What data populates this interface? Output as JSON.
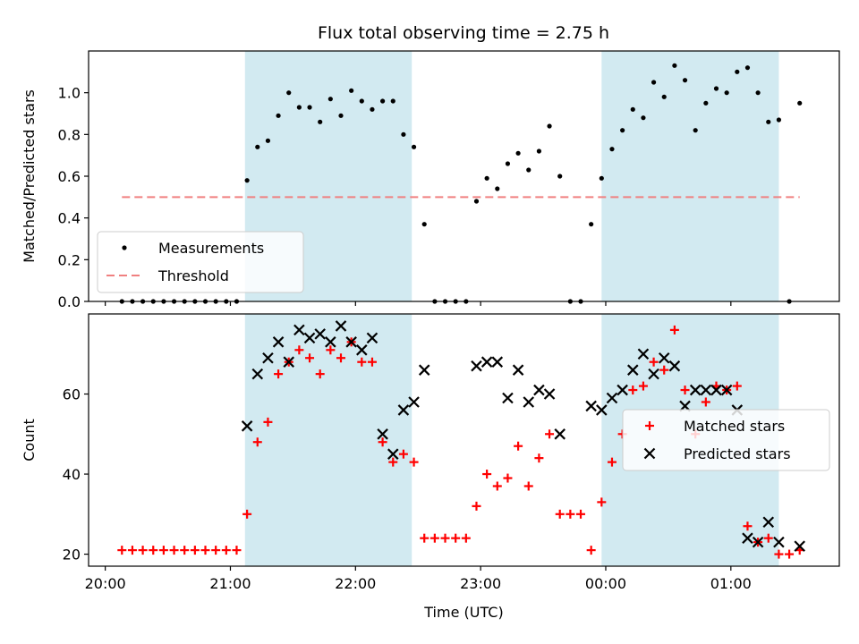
{
  "title": "Flux total observing time = 2.75 h",
  "colors": {
    "shade": "#add8e6",
    "threshold": "#f08080",
    "matched": "#ff0000",
    "predicted": "#000000",
    "measure": "#000000"
  },
  "shaded_intervals": [
    [
      "21:07",
      "22:27"
    ],
    [
      "23:58",
      "01:23"
    ]
  ],
  "chart_data": [
    {
      "type": "scatter",
      "ylabel": "Matched/Predicted stars",
      "xlabel": "",
      "ylim": [
        0,
        1.2
      ],
      "yticks": [
        0.0,
        0.2,
        0.4,
        0.6,
        0.8,
        1.0
      ],
      "yticklabels": [
        "0.0",
        "0.2",
        "0.4",
        "0.6",
        "0.8",
        "1.0"
      ],
      "xlim": [
        "19:52",
        "01:52"
      ],
      "legend_loc": "lower left",
      "series": [
        {
          "name": "Measurements",
          "marker": "dot",
          "points": [
            [
              "20:08",
              0.0
            ],
            [
              "20:13",
              0.0
            ],
            [
              "20:18",
              0.0
            ],
            [
              "20:23",
              0.0
            ],
            [
              "20:28",
              0.0
            ],
            [
              "20:33",
              0.0
            ],
            [
              "20:38",
              0.0
            ],
            [
              "20:43",
              0.0
            ],
            [
              "20:48",
              0.0
            ],
            [
              "20:53",
              0.0
            ],
            [
              "20:58",
              0.0
            ],
            [
              "21:03",
              0.0
            ],
            [
              "21:08",
              0.58
            ],
            [
              "21:13",
              0.74
            ],
            [
              "21:18",
              0.77
            ],
            [
              "21:23",
              0.89
            ],
            [
              "21:28",
              1.0
            ],
            [
              "21:33",
              0.93
            ],
            [
              "21:38",
              0.93
            ],
            [
              "21:43",
              0.86
            ],
            [
              "21:48",
              0.97
            ],
            [
              "21:53",
              0.89
            ],
            [
              "21:58",
              1.01
            ],
            [
              "22:03",
              0.96
            ],
            [
              "22:08",
              0.92
            ],
            [
              "22:13",
              0.96
            ],
            [
              "22:18",
              0.96
            ],
            [
              "22:23",
              0.8
            ],
            [
              "22:28",
              0.74
            ],
            [
              "22:33",
              0.37
            ],
            [
              "22:38",
              0.0
            ],
            [
              "22:43",
              0.0
            ],
            [
              "22:48",
              0.0
            ],
            [
              "22:53",
              0.0
            ],
            [
              "22:58",
              0.48
            ],
            [
              "23:03",
              0.59
            ],
            [
              "23:08",
              0.54
            ],
            [
              "23:13",
              0.66
            ],
            [
              "23:18",
              0.71
            ],
            [
              "23:23",
              0.63
            ],
            [
              "23:28",
              0.72
            ],
            [
              "23:33",
              0.84
            ],
            [
              "23:38",
              0.6
            ],
            [
              "23:43",
              0.0
            ],
            [
              "23:48",
              0.0
            ],
            [
              "23:53",
              0.37
            ],
            [
              "23:58",
              0.59
            ],
            [
              "00:03",
              0.73
            ],
            [
              "00:08",
              0.82
            ],
            [
              "00:13",
              0.92
            ],
            [
              "00:18",
              0.88
            ],
            [
              "00:23",
              1.05
            ],
            [
              "00:28",
              0.98
            ],
            [
              "00:33",
              1.13
            ],
            [
              "00:38",
              1.06
            ],
            [
              "00:43",
              0.82
            ],
            [
              "00:48",
              0.95
            ],
            [
              "00:53",
              1.02
            ],
            [
              "00:58",
              1.0
            ],
            [
              "01:03",
              1.1
            ],
            [
              "01:08",
              1.12
            ],
            [
              "01:13",
              1.0
            ],
            [
              "01:18",
              0.86
            ],
            [
              "01:23",
              0.87
            ],
            [
              "01:28",
              0.0
            ],
            [
              "01:33",
              0.95
            ]
          ]
        },
        {
          "name": "Threshold",
          "style": "dashed",
          "points": [
            [
              "20:08",
              0.5
            ],
            [
              "01:33",
              0.5
            ]
          ]
        }
      ]
    },
    {
      "type": "scatter",
      "ylabel": "Count",
      "xlabel": "Time (UTC)",
      "ylim": [
        17,
        80
      ],
      "yticks": [
        20,
        40,
        60
      ],
      "yticklabels": [
        "20",
        "40",
        "60"
      ],
      "xlim": [
        "19:52",
        "01:52"
      ],
      "xticks": [
        "20:00",
        "21:00",
        "22:00",
        "23:00",
        "00:00",
        "01:00"
      ],
      "xticklabels": [
        "20:00",
        "21:00",
        "22:00",
        "23:00",
        "00:00",
        "01:00"
      ],
      "legend_loc": "center right",
      "series": [
        {
          "name": "Matched stars",
          "marker": "plus",
          "points": [
            [
              "20:08",
              21
            ],
            [
              "20:13",
              21
            ],
            [
              "20:18",
              21
            ],
            [
              "20:23",
              21
            ],
            [
              "20:28",
              21
            ],
            [
              "20:33",
              21
            ],
            [
              "20:38",
              21
            ],
            [
              "20:43",
              21
            ],
            [
              "20:48",
              21
            ],
            [
              "20:53",
              21
            ],
            [
              "20:58",
              21
            ],
            [
              "21:03",
              21
            ],
            [
              "21:08",
              30
            ],
            [
              "21:13",
              48
            ],
            [
              "21:18",
              53
            ],
            [
              "21:23",
              65
            ],
            [
              "21:28",
              68
            ],
            [
              "21:33",
              71
            ],
            [
              "21:38",
              69
            ],
            [
              "21:43",
              65
            ],
            [
              "21:48",
              71
            ],
            [
              "21:53",
              69
            ],
            [
              "21:58",
              73
            ],
            [
              "22:03",
              68
            ],
            [
              "22:08",
              68
            ],
            [
              "22:13",
              48
            ],
            [
              "22:18",
              43
            ],
            [
              "22:23",
              45
            ],
            [
              "22:28",
              43
            ],
            [
              "22:33",
              24
            ],
            [
              "22:38",
              24
            ],
            [
              "22:43",
              24
            ],
            [
              "22:48",
              24
            ],
            [
              "22:53",
              24
            ],
            [
              "22:58",
              32
            ],
            [
              "23:03",
              40
            ],
            [
              "23:08",
              37
            ],
            [
              "23:13",
              39
            ],
            [
              "23:18",
              47
            ],
            [
              "23:23",
              37
            ],
            [
              "23:28",
              44
            ],
            [
              "23:33",
              50
            ],
            [
              "23:38",
              30
            ],
            [
              "23:43",
              30
            ],
            [
              "23:48",
              30
            ],
            [
              "23:53",
              21
            ],
            [
              "23:58",
              33
            ],
            [
              "00:03",
              43
            ],
            [
              "00:08",
              50
            ],
            [
              "00:13",
              61
            ],
            [
              "00:18",
              62
            ],
            [
              "00:23",
              68
            ],
            [
              "00:28",
              66
            ],
            [
              "00:33",
              76
            ],
            [
              "00:38",
              61
            ],
            [
              "00:43",
              50
            ],
            [
              "00:48",
              58
            ],
            [
              "00:53",
              62
            ],
            [
              "00:58",
              61
            ],
            [
              "01:03",
              62
            ],
            [
              "01:08",
              27
            ],
            [
              "01:13",
              23
            ],
            [
              "01:18",
              24
            ],
            [
              "01:23",
              20
            ],
            [
              "01:28",
              20
            ],
            [
              "01:33",
              21
            ]
          ]
        },
        {
          "name": "Predicted stars",
          "marker": "x",
          "points": [
            [
              "21:08",
              52
            ],
            [
              "21:13",
              65
            ],
            [
              "21:18",
              69
            ],
            [
              "21:23",
              73
            ],
            [
              "21:28",
              68
            ],
            [
              "21:33",
              76
            ],
            [
              "21:38",
              74
            ],
            [
              "21:43",
              75
            ],
            [
              "21:48",
              73
            ],
            [
              "21:53",
              77
            ],
            [
              "21:58",
              73
            ],
            [
              "22:03",
              71
            ],
            [
              "22:08",
              74
            ],
            [
              "22:13",
              50
            ],
            [
              "22:18",
              45
            ],
            [
              "22:23",
              56
            ],
            [
              "22:28",
              58
            ],
            [
              "22:33",
              66
            ],
            [
              "22:58",
              67
            ],
            [
              "23:03",
              68
            ],
            [
              "23:08",
              68
            ],
            [
              "23:13",
              59
            ],
            [
              "23:18",
              66
            ],
            [
              "23:23",
              58
            ],
            [
              "23:28",
              61
            ],
            [
              "23:33",
              60
            ],
            [
              "23:38",
              50
            ],
            [
              "23:53",
              57
            ],
            [
              "23:58",
              56
            ],
            [
              "00:03",
              59
            ],
            [
              "00:08",
              61
            ],
            [
              "00:13",
              66
            ],
            [
              "00:18",
              70
            ],
            [
              "00:23",
              65
            ],
            [
              "00:28",
              69
            ],
            [
              "00:33",
              67
            ],
            [
              "00:38",
              57
            ],
            [
              "00:43",
              61
            ],
            [
              "00:48",
              61
            ],
            [
              "00:53",
              61
            ],
            [
              "00:58",
              61
            ],
            [
              "01:03",
              56
            ],
            [
              "01:08",
              24
            ],
            [
              "01:13",
              23
            ],
            [
              "01:18",
              28
            ],
            [
              "01:23",
              23
            ],
            [
              "01:33",
              22
            ]
          ]
        }
      ]
    }
  ]
}
